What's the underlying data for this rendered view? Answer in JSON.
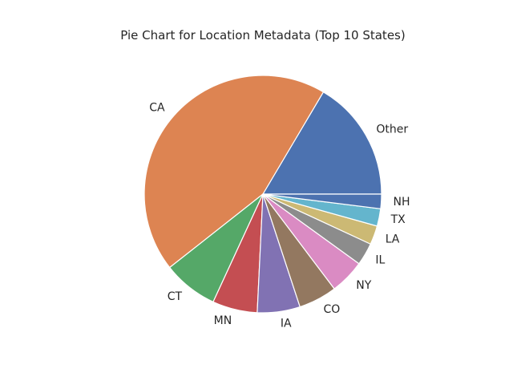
{
  "chart_data": {
    "type": "pie",
    "title": "Pie Chart for Location Metadata (Top 10 States)",
    "start_angle_deg": 0,
    "direction": "counterclockwise",
    "categories": [
      "Other",
      "CA",
      "CT",
      "MN",
      "IA",
      "CO",
      "NY",
      "IL",
      "LA",
      "TX",
      "NH"
    ],
    "values": [
      16.7,
      44.7,
      7.6,
      6.2,
      5.9,
      5.3,
      4.8,
      3.1,
      2.6,
      2.4,
      2.0
    ],
    "colors": [
      "#4c72b0",
      "#dd8452",
      "#55a868",
      "#c44e52",
      "#8172b3",
      "#937860",
      "#da8bc3",
      "#8c8c8c",
      "#ccb974",
      "#64b5cd",
      "#4c72b0"
    ]
  }
}
